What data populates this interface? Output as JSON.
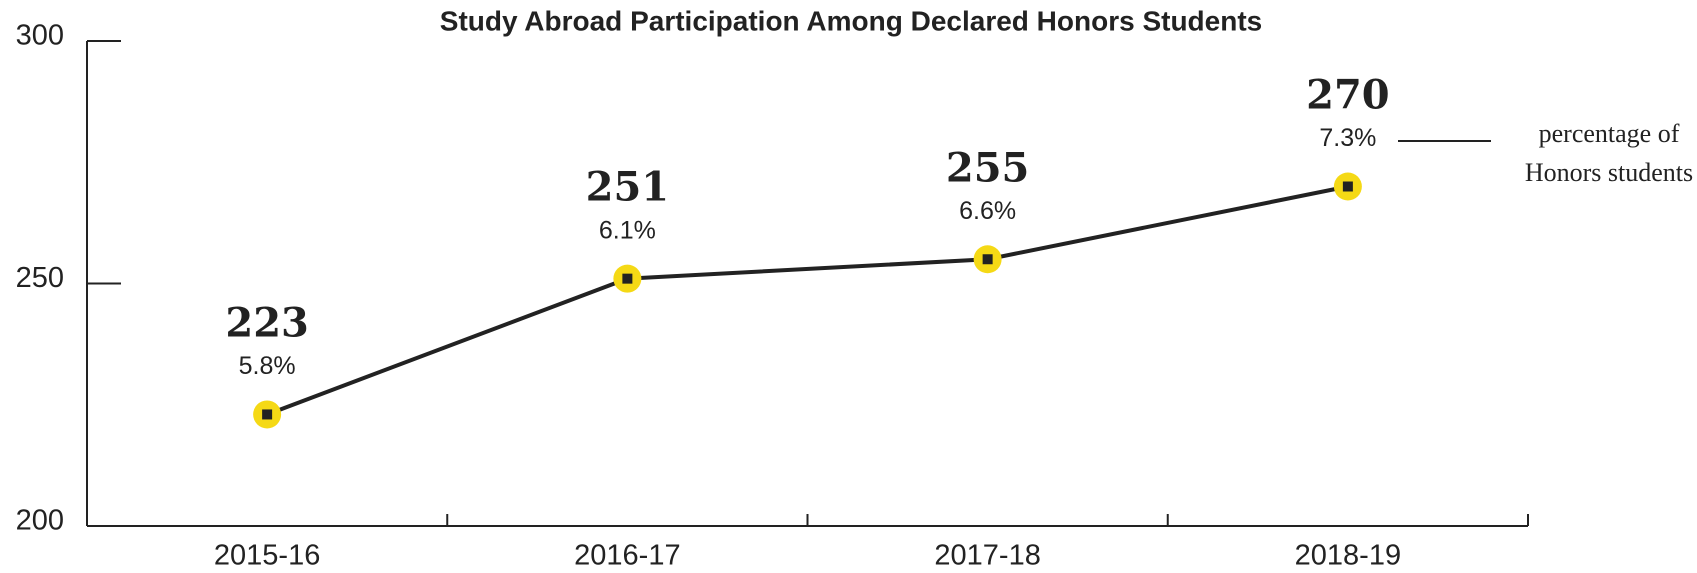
{
  "chart_data": {
    "type": "line",
    "title": "Study Abroad Participation Among Declared Honors Students",
    "categories": [
      "2015-16",
      "2016-17",
      "2017-18",
      "2018-19"
    ],
    "values": [
      223,
      251,
      255,
      270
    ],
    "percent_labels": [
      "5.8%",
      "6.1%",
      "6.6%",
      "7.3%"
    ],
    "annotation": [
      "percentage of",
      "Honors students"
    ],
    "color": "#222222",
    "marker_color": "#f5d915",
    "ylim": [
      200,
      300
    ],
    "yticks": [
      200,
      250,
      300
    ],
    "grid": false
  }
}
